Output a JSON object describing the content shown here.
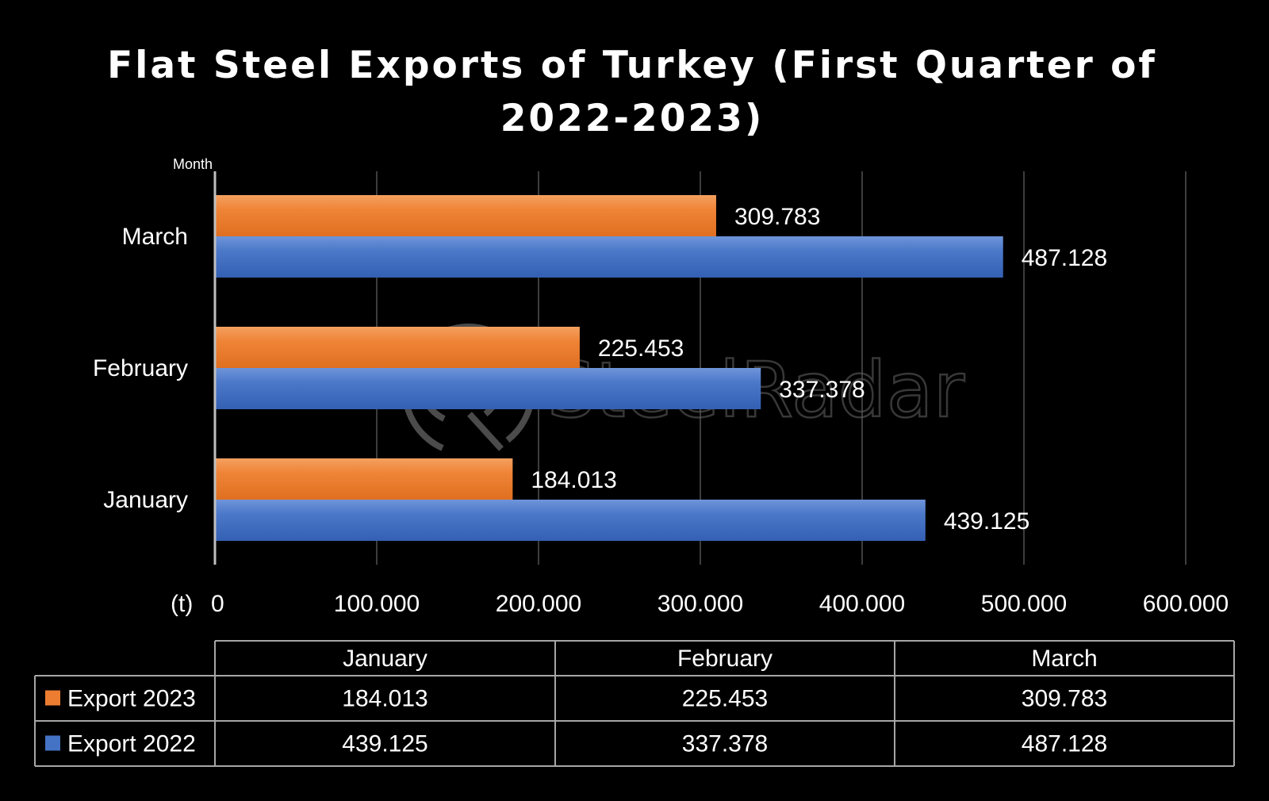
{
  "chart_data": {
    "type": "bar",
    "orientation": "horizontal",
    "title_lines": [
      "Flat Steel Exports of Turkey (First Quarter of",
      "2022-2023)"
    ],
    "ylabel": "Month",
    "xlabel": "(t)",
    "categories": [
      "January",
      "February",
      "March"
    ],
    "series": [
      {
        "name": "Export 2023",
        "color": "#ed7d31",
        "values": [
          184013,
          225453,
          309783
        ],
        "labels": [
          "184.013",
          "225.453",
          "309.783"
        ]
      },
      {
        "name": "Export 2022",
        "color": "#4472c4",
        "values": [
          439125,
          337378,
          487128
        ],
        "labels": [
          "439.125",
          "337.378",
          "487.128"
        ]
      }
    ],
    "xlim": [
      0,
      600000
    ],
    "x_ticks": [
      0,
      100000,
      200000,
      300000,
      400000,
      500000,
      600000
    ],
    "x_tick_labels": [
      "0",
      "100.000",
      "200.000",
      "300.000",
      "400.000",
      "500.000",
      "600.000"
    ],
    "grid": true,
    "legend": "data-table"
  },
  "watermark": {
    "text_a": "Steel",
    "text_b": "Radar"
  }
}
